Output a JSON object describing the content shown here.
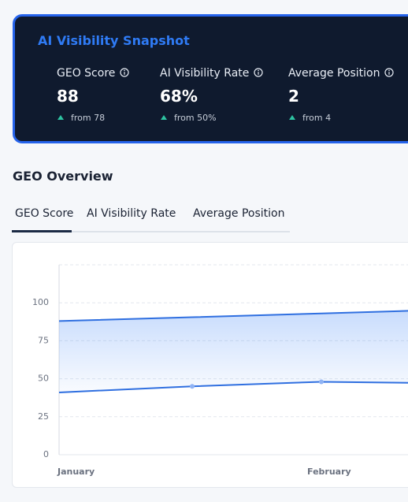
{
  "snapshot": {
    "title": "AI Visibility Snapshot",
    "metrics": [
      {
        "label": "GEO Score",
        "value": "88",
        "delta": "from 78"
      },
      {
        "label": "AI Visibility Rate",
        "value": "68%",
        "delta": "from 50%"
      },
      {
        "label": "Average Position",
        "value": "2",
        "delta": "from 4"
      }
    ]
  },
  "overview": {
    "title": "GEO Overview",
    "tabs": [
      "GEO Score",
      "AI Visibility Rate",
      "Average Position"
    ]
  },
  "chart_data": {
    "type": "range-area",
    "categories": [
      "January",
      null,
      "February",
      null
    ],
    "series": [
      {
        "color": "#2f6fe0",
        "values": [
          88,
          90.5,
          93,
          95.5
        ]
      },
      {
        "color": "#2f6fe0",
        "values": [
          41,
          45,
          48,
          47
        ]
      }
    ],
    "ylim": [
      0,
      125
    ],
    "yticks": [
      0,
      25,
      50,
      75,
      100
    ],
    "grid": true
  }
}
